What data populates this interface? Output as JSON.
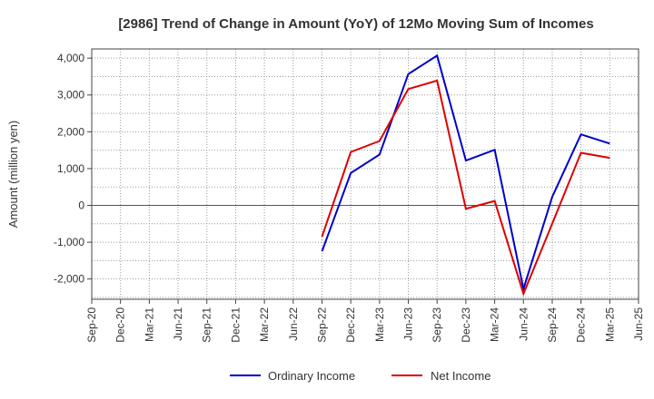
{
  "chart_data": {
    "type": "line",
    "title": "[2986]  Trend of Change in Amount (YoY) of 12Mo Moving Sum of Incomes",
    "xlabel": "",
    "ylabel": "Amount (million yen)",
    "x_ticks": [
      "Sep-20",
      "Dec-20",
      "Mar-21",
      "Jun-21",
      "Sep-21",
      "Dec-21",
      "Mar-22",
      "Jun-22",
      "Sep-22",
      "Dec-22",
      "Mar-23",
      "Jun-23",
      "Sep-23",
      "Dec-23",
      "Mar-24",
      "Jun-24",
      "Sep-24",
      "Dec-24",
      "Mar-25",
      "Jun-25"
    ],
    "y_ticks": [
      -2000,
      -1000,
      0,
      1000,
      2000,
      3000,
      4000
    ],
    "y_tick_labels": [
      "-2,000",
      "-1,000",
      "0",
      "1,000",
      "2,000",
      "3,000",
      "4,000"
    ],
    "ylim": [
      -2550,
      4250
    ],
    "grid": true,
    "legend_position": "bottom",
    "series": [
      {
        "name": "Ordinary Income",
        "color": "#0000cc",
        "x": [
          "Sep-22",
          "Dec-22",
          "Mar-23",
          "Jun-23",
          "Sep-23",
          "Dec-23",
          "Mar-24",
          "Jun-24",
          "Sep-24",
          "Dec-24",
          "Mar-25"
        ],
        "values": [
          -1250,
          880,
          1380,
          3570,
          4070,
          1220,
          1510,
          -2270,
          230,
          1930,
          1680
        ]
      },
      {
        "name": "Net Income",
        "color": "#dd0000",
        "x": [
          "Sep-22",
          "Dec-22",
          "Mar-23",
          "Jun-23",
          "Sep-23",
          "Dec-23",
          "Mar-24",
          "Jun-24",
          "Sep-24",
          "Dec-24",
          "Mar-25"
        ],
        "values": [
          -850,
          1450,
          1750,
          3160,
          3390,
          -90,
          120,
          -2400,
          -500,
          1430,
          1290
        ]
      }
    ]
  }
}
